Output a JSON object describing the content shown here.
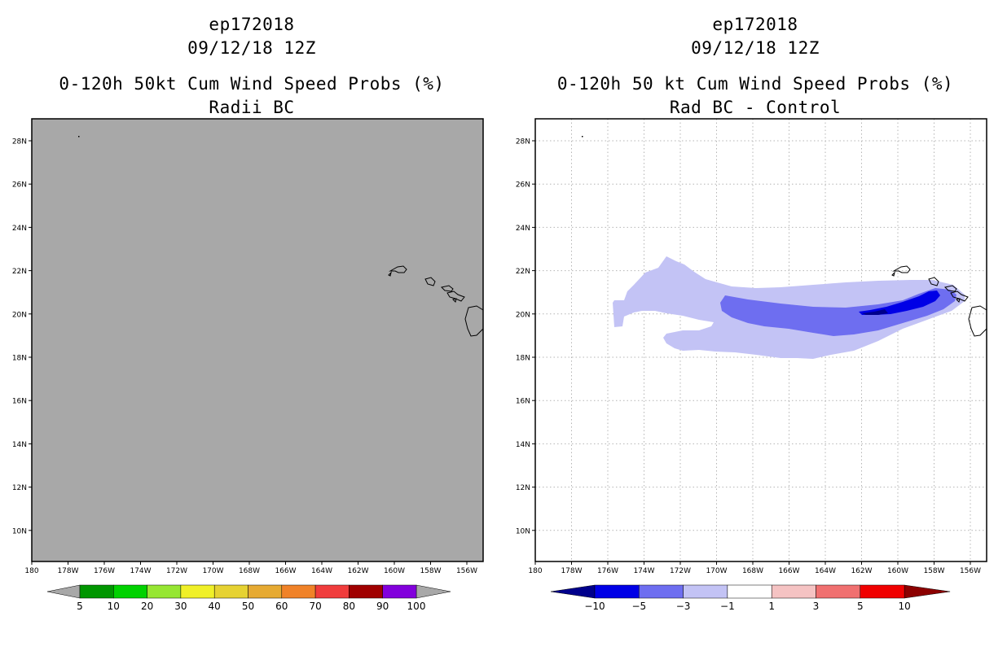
{
  "left_panel": {
    "storm_id": "ep172018",
    "date": "09/12/18 12Z",
    "product_title": "0-120h 50kt Cum Wind Speed Probs (%)",
    "subtitle": "Radii BC",
    "fill_color": "#a8a8a8",
    "colorbar": {
      "colors": [
        "#009600",
        "#00d200",
        "#96e632",
        "#f0f028",
        "#e6d232",
        "#e6aa32",
        "#f08228",
        "#f03c3c",
        "#a00000",
        "#8200dc"
      ],
      "labels": [
        "5",
        "10",
        "20",
        "30",
        "40",
        "50",
        "60",
        "70",
        "80",
        "90",
        "100"
      ]
    }
  },
  "right_panel": {
    "storm_id": "ep172018",
    "date": "09/12/18 12Z",
    "product_title": "0-120h 50 kt Cum Wind Speed Probs (%)",
    "subtitle": "Rad BC - Control",
    "colorbar": {
      "colors": [
        "#0000e6",
        "#6e6ef0",
        "#c3c3f5",
        "#ffffff",
        "#f5c3c3",
        "#f07070",
        "#f00000"
      ],
      "left_tip": "#00008c",
      "right_tip": "#8c0000",
      "labels": [
        "-10",
        "-5",
        "-3",
        "-1",
        "1",
        "3",
        "5",
        "10"
      ]
    }
  },
  "map": {
    "lon_labels": [
      "180",
      "178W",
      "176W",
      "174W",
      "172W",
      "170W",
      "168W",
      "166W",
      "164W",
      "162W",
      "160W",
      "158W",
      "156W"
    ],
    "lat_labels": [
      "28N",
      "26N",
      "24N",
      "22N",
      "20N",
      "18N",
      "16N",
      "14N",
      "12N",
      "10N"
    ]
  }
}
